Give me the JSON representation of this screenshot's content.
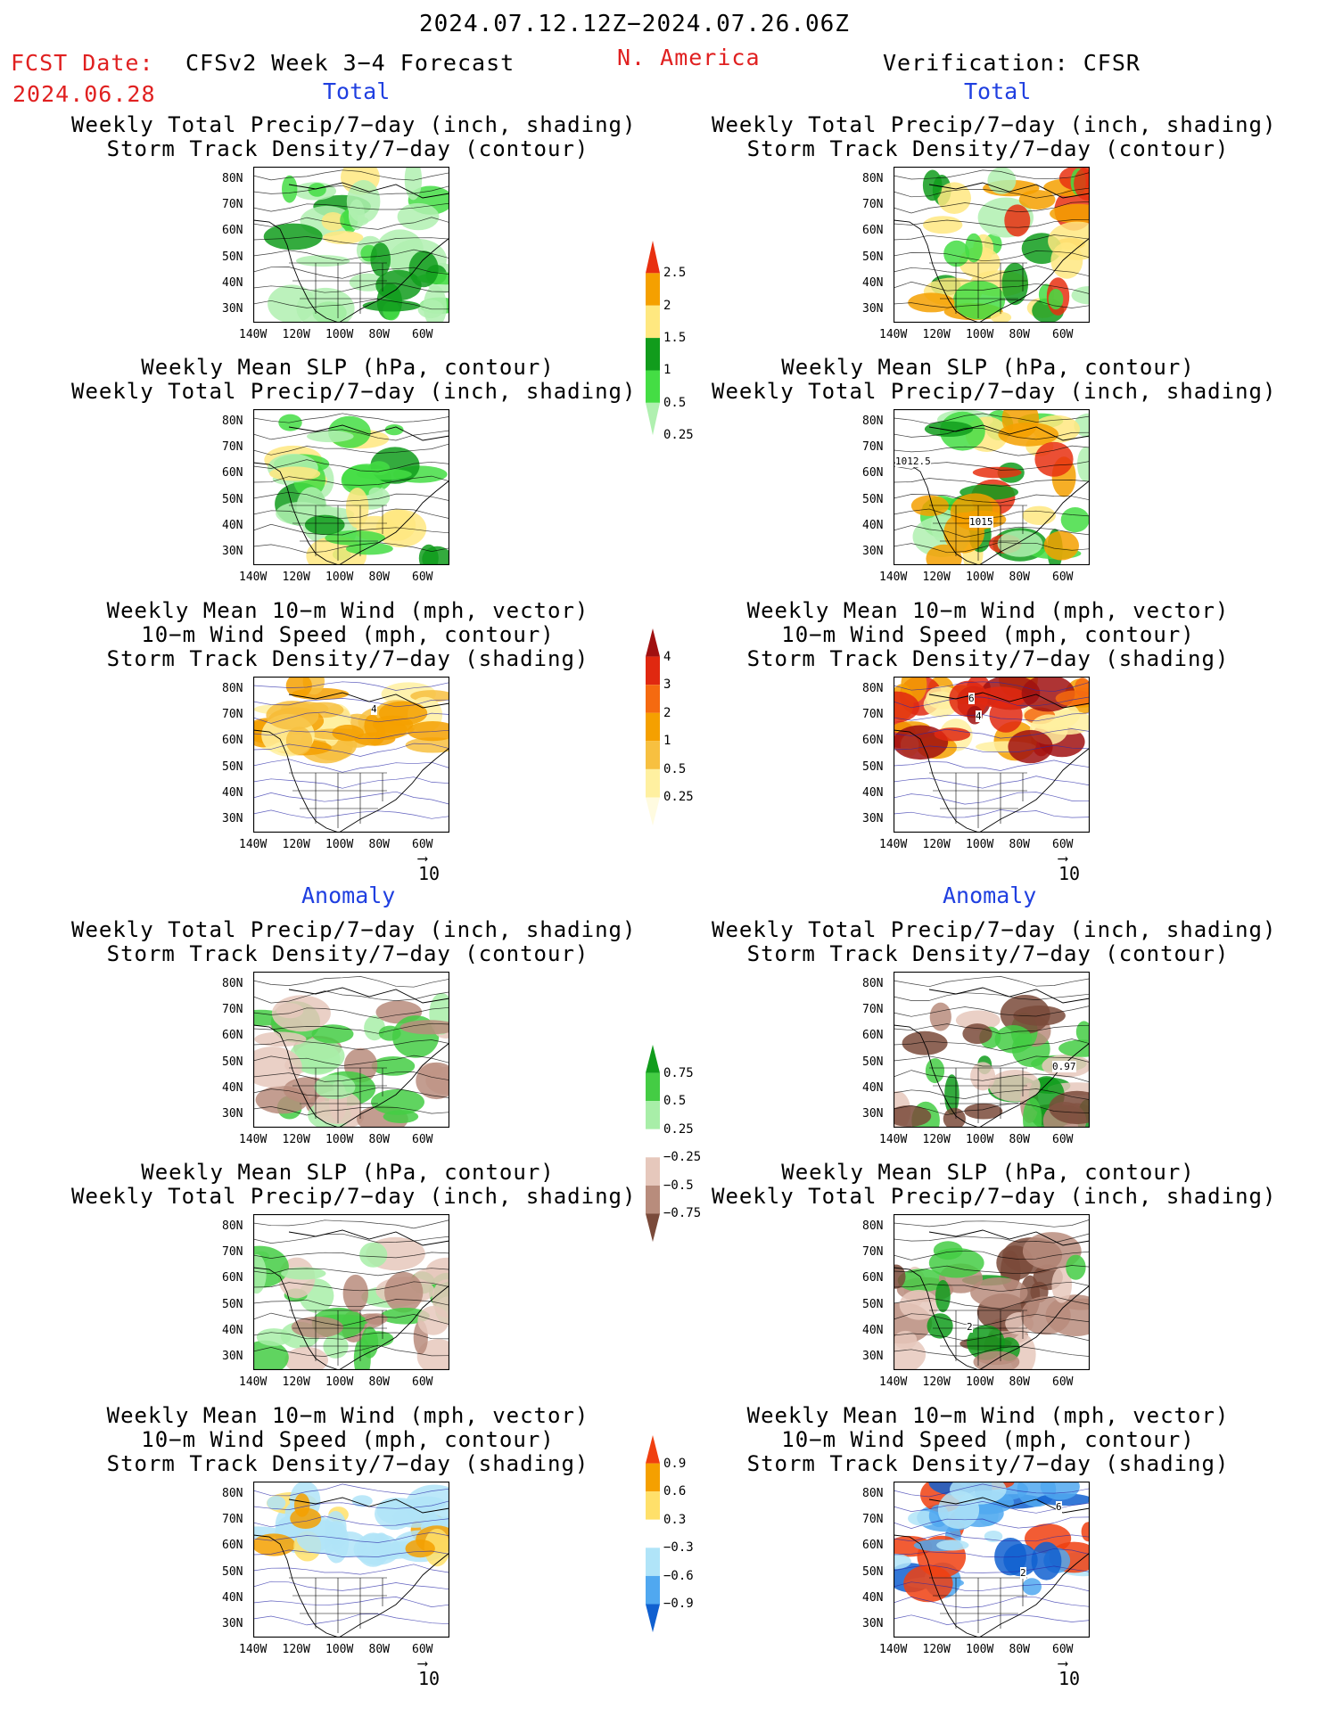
{
  "header": {
    "date_range": "2024.07.12.12Z−2024.07.26.06Z",
    "fcst_label": "FCST Date:",
    "fcst_date": "2024.06.28",
    "model": "CFSv2 Week 3−4 Forecast",
    "region": "N. America",
    "verification": "Verification: CFSR"
  },
  "sections": {
    "total": "Total",
    "anomaly": "Anomaly"
  },
  "titles": {
    "precip_storm": [
      "Weekly Total Precip/7−day (inch, shading)",
      "Storm Track Density/7−day (contour)"
    ],
    "slp_precip": [
      "Weekly Mean SLP (hPa, contour)",
      "Weekly Total Precip/7−day (inch, shading)"
    ],
    "wind": [
      "Weekly Mean 10−m Wind (mph, vector)",
      "10−m Wind Speed (mph, contour)",
      "Storm Track Density/7−day (shading)"
    ]
  },
  "axes": {
    "lat_labels": [
      "80N",
      "70N",
      "60N",
      "50N",
      "40N",
      "30N"
    ],
    "lon_labels": [
      "140W",
      "120W",
      "100W",
      "80W",
      "60W"
    ]
  },
  "vector_ref": "10",
  "colorbars": [
    {
      "labels": [
        "2.5",
        "2",
        "1.5",
        "1",
        "0.5",
        "0.25"
      ],
      "colors": [
        "#e83010",
        "#f5a000",
        "#ffe880",
        "#119c1c",
        "#44dd44",
        "#b0f0b0"
      ]
    },
    {
      "labels": [
        "4",
        "3",
        "2",
        "1",
        "0.5",
        "0.25"
      ],
      "colors": [
        "#a01010",
        "#e02810",
        "#f56a10",
        "#f5a000",
        "#f7c040",
        "#fff0a0",
        "#fffbe0"
      ]
    },
    {
      "labels": [
        "0.75",
        "0.5",
        "0.25",
        "−0.25",
        "−0.5",
        "−0.75"
      ],
      "colors": [
        "#119c1c",
        "#44cc44",
        "#a8eea8",
        "#ffffff",
        "#e6c8bc",
        "#b88c7c",
        "#7a4a3a"
      ]
    },
    {
      "labels": [
        "0.9",
        "0.6",
        "0.3",
        "−0.3",
        "−0.6",
        "−0.9"
      ],
      "colors": [
        "#f04010",
        "#f5a000",
        "#ffe06a",
        "#ffffff",
        "#b0e4f8",
        "#50a8f0",
        "#1060d0"
      ]
    }
  ],
  "contour_labels": {
    "cfsr_slp_1": "1012.5",
    "cfsr_slp_2": "1015",
    "cfsr_wind_total": "6",
    "cfsr_wind_total_2": "4",
    "cfsr_anom_precip": "0.97",
    "cfsr_anom_slp": "2",
    "cfsr_anom_wind": "6",
    "cfsr_anom_wind_2": "2",
    "cfs_wind_total": "4"
  },
  "colors": {
    "title_red": "#e02020",
    "section_blue": "#1f3fe0"
  }
}
